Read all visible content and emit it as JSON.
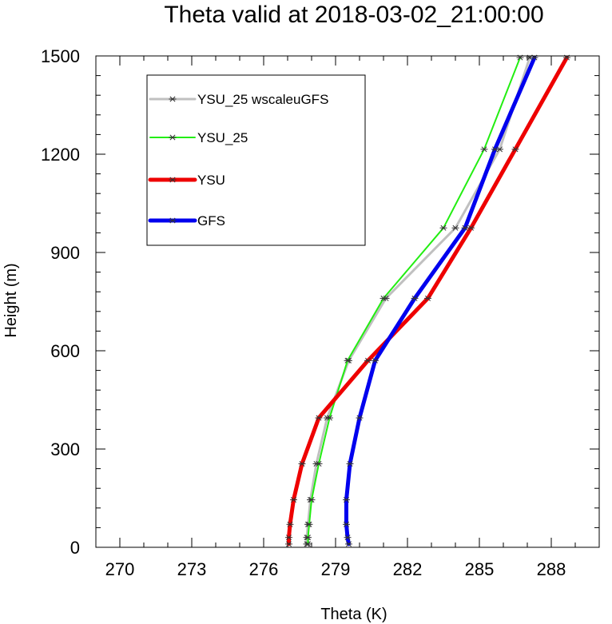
{
  "chart_data": {
    "type": "line",
    "title": "Theta valid at 2018-03-02_21:00:00",
    "xlabel": "Theta (K)",
    "ylabel": "Height (m)",
    "xlim": [
      269,
      290
    ],
    "ylim": [
      0,
      1500
    ],
    "x_ticks": [
      270,
      273,
      276,
      279,
      282,
      285,
      288
    ],
    "x_tick_labels": [
      "270",
      "273",
      "276",
      "279",
      "282",
      "285",
      "288"
    ],
    "y_ticks": [
      0,
      300,
      600,
      900,
      1200,
      1500
    ],
    "y_tick_labels": [
      "0",
      "300",
      "600",
      "900",
      "1200",
      "1500"
    ],
    "grid": false,
    "legend_position": "top-left",
    "heights": [
      10,
      30,
      70,
      145,
      255,
      395,
      570,
      760,
      975,
      1215,
      1495
    ],
    "series": [
      {
        "name": "YSU_25 wscaleuGFS",
        "color": "#c0c0c0",
        "line_width": 3,
        "x": [
          277.8,
          277.8,
          277.85,
          277.95,
          278.2,
          278.65,
          279.55,
          281.1,
          284.0,
          285.85,
          287.1
        ]
      },
      {
        "name": "YSU_25",
        "color": "#22ee11",
        "line_width": 2,
        "x": [
          277.85,
          277.85,
          277.9,
          278.0,
          278.3,
          278.75,
          279.5,
          281.0,
          283.5,
          285.2,
          286.7
        ]
      },
      {
        "name": "YSU",
        "color": "#ee0000",
        "line_width": 5,
        "x": [
          277.05,
          277.05,
          277.1,
          277.25,
          277.6,
          278.3,
          280.35,
          282.85,
          284.65,
          286.5,
          288.65
        ]
      },
      {
        "name": "GFS",
        "color": "#0000ee",
        "line_width": 5,
        "x": [
          279.55,
          279.5,
          279.45,
          279.45,
          279.6,
          280.0,
          280.65,
          282.3,
          284.4,
          285.65,
          287.3
        ]
      }
    ]
  }
}
